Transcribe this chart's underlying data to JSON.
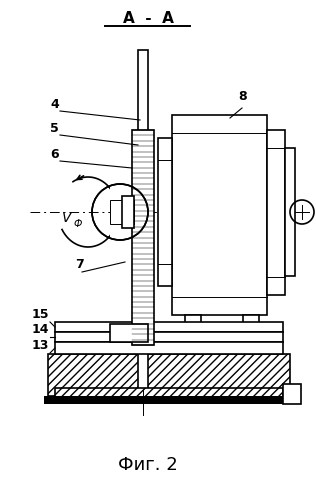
{
  "title": "А - А",
  "fig_label": "Фиг. 2",
  "bg": "#ffffff",
  "lc": "#000000"
}
